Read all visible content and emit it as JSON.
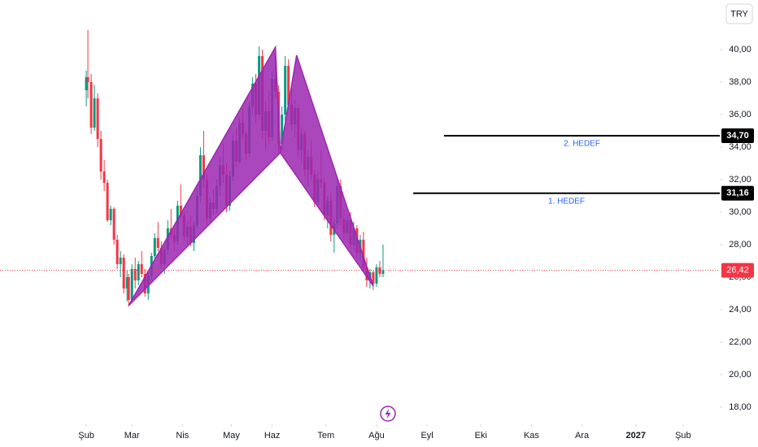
{
  "chart_data": {
    "type": "candlestick",
    "currency": "TRY",
    "x": [
      31,
      32,
      34,
      36,
      38,
      40,
      42,
      44,
      46,
      48,
      50,
      52,
      54,
      56,
      57,
      59,
      61,
      63,
      65,
      67,
      69,
      71,
      73,
      75,
      77,
      79,
      81,
      83,
      85,
      87,
      89,
      91,
      93,
      95,
      97,
      99,
      101,
      103,
      105,
      107,
      109,
      111,
      113,
      115,
      117,
      119,
      121,
      123,
      125,
      127,
      129,
      131,
      133,
      135,
      137,
      139,
      141,
      143,
      145,
      147,
      149,
      151,
      153,
      155,
      157,
      159,
      161,
      163,
      165,
      167,
      169,
      171,
      173,
      175,
      177,
      179,
      181,
      183,
      185,
      187,
      189,
      191,
      193,
      195,
      197,
      199,
      201,
      203,
      205,
      207,
      209,
      211,
      213
    ],
    "open": [
      37.5,
      38.3,
      38.0,
      35.2,
      37.0,
      34.5,
      32.5,
      31.8,
      29.5,
      30.2,
      28.3,
      26.8,
      27.2,
      25.3,
      26.0,
      24.6,
      26.5,
      25.8,
      26.8,
      26.2,
      25.0,
      26.1,
      27.3,
      28.4,
      27.8,
      26.8,
      27.7,
      29.0,
      28.6,
      28.2,
      30.4,
      29.8,
      28.5,
      29.1,
      28.1,
      29.2,
      31.0,
      33.5,
      32.0,
      29.6,
      30.6,
      30.2,
      31.6,
      32.9,
      32.3,
      30.4,
      32.2,
      34.4,
      33.1,
      35.5,
      34.8,
      33.6,
      36.5,
      37.9,
      36.0,
      39.6,
      35.0,
      36.2,
      34.6,
      38.2,
      37.4,
      34.2,
      36.0,
      39.0,
      36.6,
      35.4,
      36.4,
      33.8,
      34.8,
      32.6,
      33.4,
      32.3,
      30.6,
      32.0,
      31.8,
      29.8,
      30.7,
      28.6,
      29.3,
      31.6,
      29.6,
      28.7,
      29.5,
      28.0,
      29.0,
      27.5,
      28.3,
      26.6,
      25.8,
      26.3,
      25.6,
      26.6,
      26.2
    ],
    "high": [
      38.7,
      41.2,
      38.5,
      37.8,
      37.3,
      35.0,
      33.2,
      32.0,
      30.4,
      30.3,
      28.6,
      27.6,
      27.4,
      26.4,
      26.2,
      26.8,
      27.2,
      27.0,
      27.6,
      26.5,
      26.3,
      27.5,
      28.7,
      29.4,
      28.2,
      27.9,
      29.5,
      30.2,
      29.0,
      30.7,
      31.7,
      30.0,
      29.4,
      29.8,
      29.4,
      31.5,
      34.0,
      35.0,
      32.4,
      30.9,
      31.4,
      32.0,
      33.4,
      34.2,
      33.0,
      32.5,
      34.8,
      35.2,
      35.8,
      36.4,
      35.0,
      36.8,
      38.3,
      38.5,
      40.2,
      40.0,
      36.8,
      37.5,
      38.7,
      39.6,
      37.8,
      36.5,
      39.6,
      39.4,
      37.6,
      36.9,
      36.6,
      35.2,
      35.0,
      33.8,
      34.4,
      32.6,
      32.4,
      33.8,
      32.1,
      31.0,
      31.2,
      29.6,
      32.1,
      32.0,
      30.2,
      29.8,
      30.0,
      29.4,
      29.2,
      28.6,
      28.8,
      27.2,
      26.5,
      26.4,
      26.8,
      27.0,
      28.0
    ],
    "low": [
      36.5,
      37.0,
      34.8,
      35.0,
      34.0,
      32.0,
      31.3,
      29.4,
      29.2,
      28.0,
      26.5,
      26.0,
      25.0,
      24.5,
      24.2,
      24.5,
      25.3,
      25.5,
      26.0,
      24.8,
      24.6,
      25.8,
      27.0,
      27.6,
      26.5,
      26.2,
      27.4,
      28.3,
      27.6,
      28.0,
      29.6,
      28.2,
      28.0,
      27.9,
      27.6,
      29.0,
      30.6,
      31.5,
      29.2,
      29.3,
      29.8,
      29.9,
      31.0,
      31.8,
      30.0,
      30.1,
      31.9,
      32.8,
      33.0,
      34.5,
      33.2,
      33.4,
      36.0,
      35.5,
      35.8,
      34.5,
      33.8,
      34.2,
      34.4,
      37.0,
      33.6,
      33.8,
      35.6,
      36.3,
      35.0,
      34.6,
      33.4,
      33.0,
      32.2,
      31.6,
      32.0,
      30.3,
      30.4,
      31.5,
      29.5,
      29.0,
      28.2,
      27.5,
      29.0,
      29.2,
      28.3,
      28.3,
      27.8,
      27.6,
      27.2,
      27.0,
      26.3,
      25.4,
      25.3,
      25.2,
      25.4,
      26.0,
      26.0
    ],
    "close": [
      38.3,
      38.0,
      35.2,
      37.0,
      34.5,
      32.5,
      31.8,
      29.5,
      30.2,
      28.3,
      26.8,
      27.2,
      25.3,
      26.0,
      24.6,
      26.5,
      25.8,
      26.8,
      26.2,
      25.0,
      26.1,
      27.3,
      28.4,
      27.8,
      26.8,
      27.7,
      29.0,
      28.6,
      28.2,
      30.4,
      29.8,
      28.5,
      29.1,
      28.1,
      29.2,
      31.0,
      33.5,
      32.0,
      29.6,
      30.6,
      30.2,
      31.6,
      32.9,
      32.3,
      30.4,
      32.2,
      34.4,
      33.1,
      35.5,
      34.8,
      33.6,
      36.5,
      37.9,
      36.0,
      39.6,
      35.0,
      36.2,
      34.6,
      38.2,
      37.4,
      34.2,
      36.0,
      39.0,
      36.6,
      35.4,
      36.4,
      33.8,
      34.8,
      32.6,
      33.4,
      32.3,
      30.6,
      32.0,
      31.8,
      29.8,
      30.7,
      28.6,
      29.3,
      31.6,
      29.6,
      28.7,
      29.5,
      28.0,
      29.0,
      27.5,
      28.3,
      26.6,
      25.8,
      26.3,
      25.6,
      26.6,
      26.2,
      26.42
    ],
    "up_color": "#089981",
    "down_color": "#f23645",
    "xlim": [
      -21.9,
      419.5
    ],
    "xticks": [
      {
        "value": 31,
        "label": "Şub"
      },
      {
        "value": 59,
        "label": "Mar"
      },
      {
        "value": 90,
        "label": "Nis"
      },
      {
        "value": 120,
        "label": "May"
      },
      {
        "value": 145,
        "label": "Haz"
      },
      {
        "value": 178,
        "label": "Tem"
      },
      {
        "value": 209,
        "label": "Ağu"
      },
      {
        "value": 240,
        "label": "Eyl"
      },
      {
        "value": 273,
        "label": "Eki"
      },
      {
        "value": 304,
        "label": "Kas"
      },
      {
        "value": 335,
        "label": "Ara"
      },
      {
        "value": 368,
        "label": "2027",
        "bold": true
      },
      {
        "value": 397,
        "label": "Şub"
      }
    ],
    "ylim": [
      16.95,
      43.05
    ],
    "yticks": [
      {
        "value": 18,
        "label": "18,00"
      },
      {
        "value": 20,
        "label": "20,00"
      },
      {
        "value": 22,
        "label": "22,00"
      },
      {
        "value": 24,
        "label": "24,00"
      },
      {
        "value": 26,
        "label": "26,00"
      },
      {
        "value": 28,
        "label": "28,00"
      },
      {
        "value": 30,
        "label": "30,00"
      },
      {
        "value": 32,
        "label": "32,00"
      },
      {
        "value": 34,
        "label": "34,00"
      },
      {
        "value": 36,
        "label": "36,00"
      },
      {
        "value": 38,
        "label": "38,00"
      },
      {
        "value": 40,
        "label": "40,00"
      }
    ],
    "pattern": {
      "color": "#9c27b0",
      "x": [
        57,
        147,
        150,
        160,
        207
      ],
      "y": [
        24.25,
        40.15,
        33.65,
        39.65,
        25.45
      ]
    },
    "levels": [
      {
        "value": 34.7,
        "label": "34,70",
        "text": "2. HEDEF",
        "x_start": 250.4
      },
      {
        "value": 31.16,
        "label": "31,16",
        "text": "1. HEDEF",
        "x_start": 231.5
      }
    ],
    "last_price": {
      "value": 26.42,
      "label": "26,42",
      "color": "#f23645"
    }
  }
}
